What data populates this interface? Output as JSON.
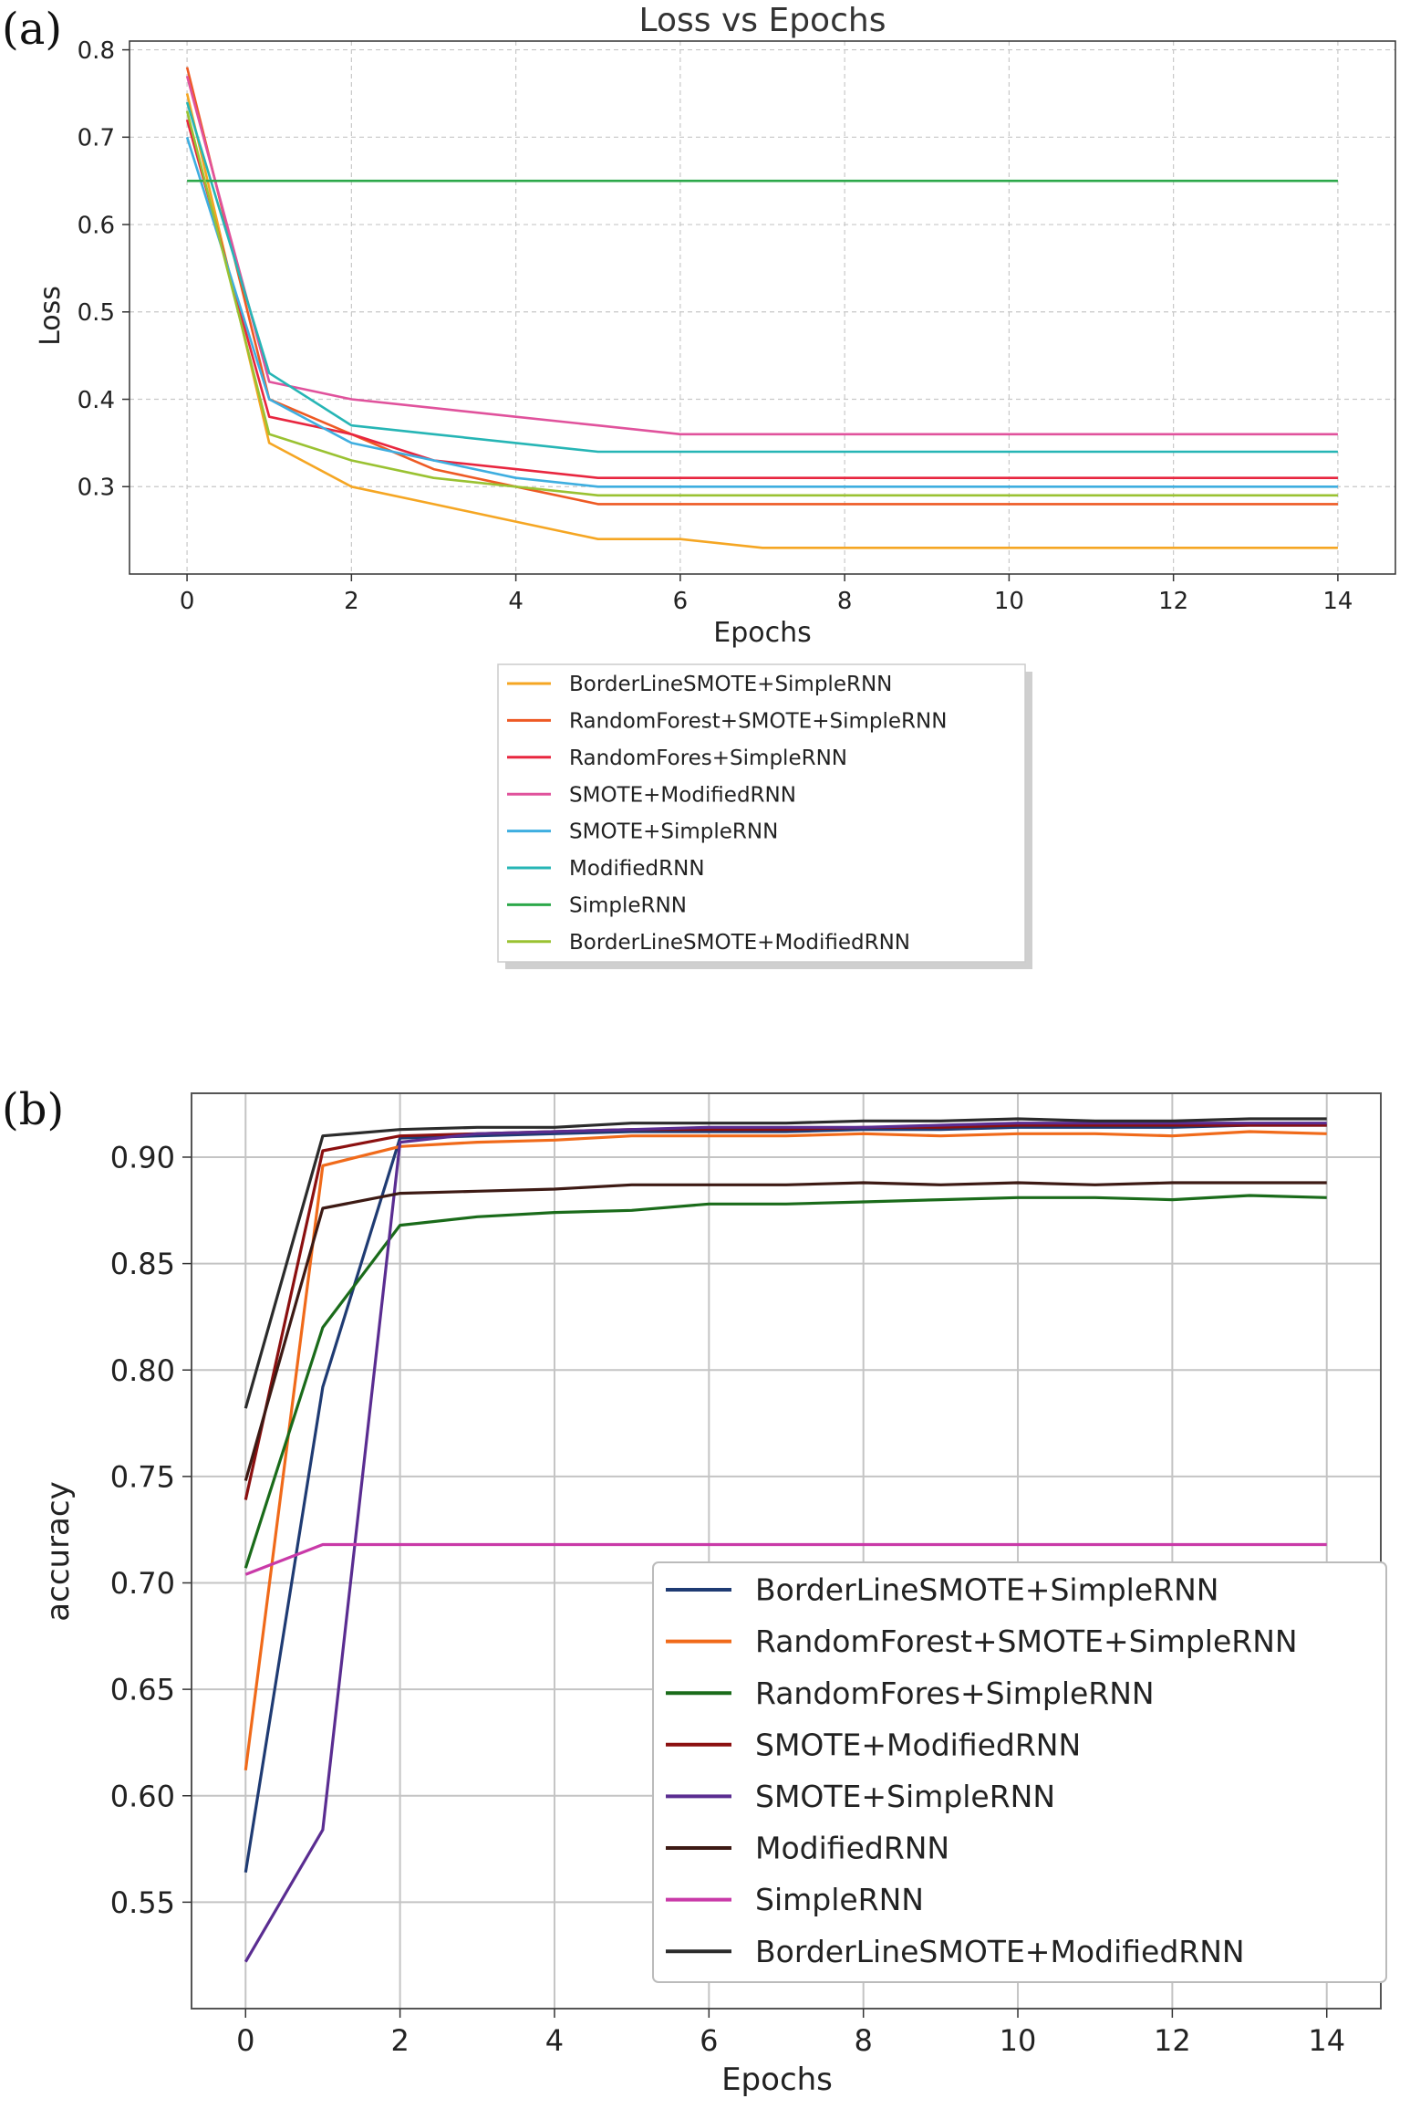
{
  "chart_data": [
    {
      "panel": "(a)",
      "type": "line",
      "title": "Loss vs Epochs",
      "xlabel": "Epochs",
      "ylabel": "Loss",
      "xlim": [
        -0.7,
        14.7
      ],
      "ylim": [
        0.2,
        0.81
      ],
      "xticks": [
        0,
        2,
        4,
        6,
        8,
        10,
        12,
        14
      ],
      "yticks": [
        0.3,
        0.4,
        0.5,
        0.6,
        0.7,
        0.8
      ],
      "ytick_labels": [
        "0.3",
        "0.4",
        "0.5",
        "0.6",
        "0.7",
        "0.8"
      ],
      "grid": true,
      "legend": "below",
      "x": [
        0,
        1,
        2,
        3,
        4,
        5,
        6,
        7,
        8,
        9,
        10,
        11,
        12,
        13,
        14
      ],
      "series": [
        {
          "name": "BorderLineSMOTE+SimpleRNN",
          "color": "#f5a623",
          "values": [
            0.75,
            0.35,
            0.3,
            0.28,
            0.26,
            0.24,
            0.24,
            0.23,
            0.23,
            0.23,
            0.23,
            0.23,
            0.23,
            0.23,
            0.23
          ]
        },
        {
          "name": "RandomForest+SMOTE+SimpleRNN",
          "color": "#ee5a24",
          "values": [
            0.78,
            0.4,
            0.36,
            0.32,
            0.3,
            0.28,
            0.28,
            0.28,
            0.28,
            0.28,
            0.28,
            0.28,
            0.28,
            0.28,
            0.28
          ]
        },
        {
          "name": "RandomFores+SimpleRNN",
          "color": "#e8263f",
          "values": [
            0.72,
            0.38,
            0.36,
            0.33,
            0.32,
            0.31,
            0.31,
            0.31,
            0.31,
            0.31,
            0.31,
            0.31,
            0.31,
            0.31,
            0.31
          ]
        },
        {
          "name": "SMOTE+ModifiedRNN",
          "color": "#e0529c",
          "values": [
            0.77,
            0.42,
            0.4,
            0.39,
            0.38,
            0.37,
            0.36,
            0.36,
            0.36,
            0.36,
            0.36,
            0.36,
            0.36,
            0.36,
            0.36
          ]
        },
        {
          "name": "SMOTE+SimpleRNN",
          "color": "#3eaee0",
          "values": [
            0.7,
            0.4,
            0.35,
            0.33,
            0.31,
            0.3,
            0.3,
            0.3,
            0.3,
            0.3,
            0.3,
            0.3,
            0.3,
            0.3,
            0.3
          ]
        },
        {
          "name": "ModifiedRNN",
          "color": "#26b5b5",
          "values": [
            0.74,
            0.43,
            0.37,
            0.36,
            0.35,
            0.34,
            0.34,
            0.34,
            0.34,
            0.34,
            0.34,
            0.34,
            0.34,
            0.34,
            0.34
          ]
        },
        {
          "name": "SimpleRNN",
          "color": "#2ca84a",
          "values": [
            0.65,
            0.65,
            0.65,
            0.65,
            0.65,
            0.65,
            0.65,
            0.65,
            0.65,
            0.65,
            0.65,
            0.65,
            0.65,
            0.65,
            0.65
          ]
        },
        {
          "name": "BorderLineSMOTE+ModifiedRNN",
          "color": "#9ac232",
          "values": [
            0.73,
            0.36,
            0.33,
            0.31,
            0.3,
            0.29,
            0.29,
            0.29,
            0.29,
            0.29,
            0.29,
            0.29,
            0.29,
            0.29,
            0.29
          ]
        }
      ]
    },
    {
      "panel": "(b)",
      "type": "line",
      "title": "",
      "xlabel": "Epochs",
      "ylabel": "accuracy",
      "xlim": [
        -0.7,
        14.7
      ],
      "ylim": [
        0.5,
        0.93
      ],
      "xticks": [
        0,
        2,
        4,
        6,
        8,
        10,
        12,
        14
      ],
      "yticks": [
        0.55,
        0.6,
        0.65,
        0.7,
        0.75,
        0.8,
        0.85,
        0.9
      ],
      "ytick_labels": [
        "0.55",
        "0.60",
        "0.65",
        "0.70",
        "0.75",
        "0.80",
        "0.85",
        "0.90"
      ],
      "grid": true,
      "legend": "lower-right",
      "x": [
        0,
        1,
        2,
        3,
        4,
        5,
        6,
        7,
        8,
        9,
        10,
        11,
        12,
        13,
        14
      ],
      "series": [
        {
          "name": "BorderLineSMOTE+SimpleRNN",
          "color": "#1f3b73",
          "values": [
            0.564,
            0.792,
            0.909,
            0.91,
            0.911,
            0.912,
            0.912,
            0.912,
            0.913,
            0.913,
            0.914,
            0.914,
            0.914,
            0.915,
            0.915
          ]
        },
        {
          "name": "RandomForest+SMOTE+SimpleRNN",
          "color": "#f06a1a",
          "values": [
            0.612,
            0.896,
            0.905,
            0.907,
            0.908,
            0.91,
            0.91,
            0.91,
            0.911,
            0.91,
            0.911,
            0.911,
            0.91,
            0.912,
            0.911
          ]
        },
        {
          "name": "RandomFores+SimpleRNN",
          "color": "#1a6b1a",
          "values": [
            0.707,
            0.82,
            0.868,
            0.872,
            0.874,
            0.875,
            0.878,
            0.878,
            0.879,
            0.88,
            0.881,
            0.881,
            0.88,
            0.882,
            0.881
          ]
        },
        {
          "name": "SMOTE+ModifiedRNN",
          "color": "#8b1010",
          "values": [
            0.739,
            0.903,
            0.91,
            0.911,
            0.912,
            0.913,
            0.913,
            0.913,
            0.914,
            0.914,
            0.915,
            0.915,
            0.915,
            0.915,
            0.915
          ]
        },
        {
          "name": "SMOTE+SimpleRNN",
          "color": "#5a2d91",
          "values": [
            0.522,
            0.584,
            0.907,
            0.911,
            0.912,
            0.913,
            0.914,
            0.914,
            0.914,
            0.915,
            0.916,
            0.916,
            0.916,
            0.916,
            0.916
          ]
        },
        {
          "name": "ModifiedRNN",
          "color": "#3d1a14",
          "values": [
            0.748,
            0.876,
            0.883,
            0.884,
            0.885,
            0.887,
            0.887,
            0.887,
            0.888,
            0.887,
            0.888,
            0.887,
            0.888,
            0.888,
            0.888
          ]
        },
        {
          "name": "SimpleRNN",
          "color": "#c93aa8",
          "values": [
            0.704,
            0.718,
            0.718,
            0.718,
            0.718,
            0.718,
            0.718,
            0.718,
            0.718,
            0.718,
            0.718,
            0.718,
            0.718,
            0.718,
            0.718
          ]
        },
        {
          "name": "BorderLineSMOTE+ModifiedRNN",
          "color": "#2b2b2b",
          "values": [
            0.782,
            0.91,
            0.913,
            0.914,
            0.914,
            0.916,
            0.916,
            0.916,
            0.917,
            0.917,
            0.918,
            0.917,
            0.917,
            0.918,
            0.918
          ]
        }
      ]
    }
  ]
}
